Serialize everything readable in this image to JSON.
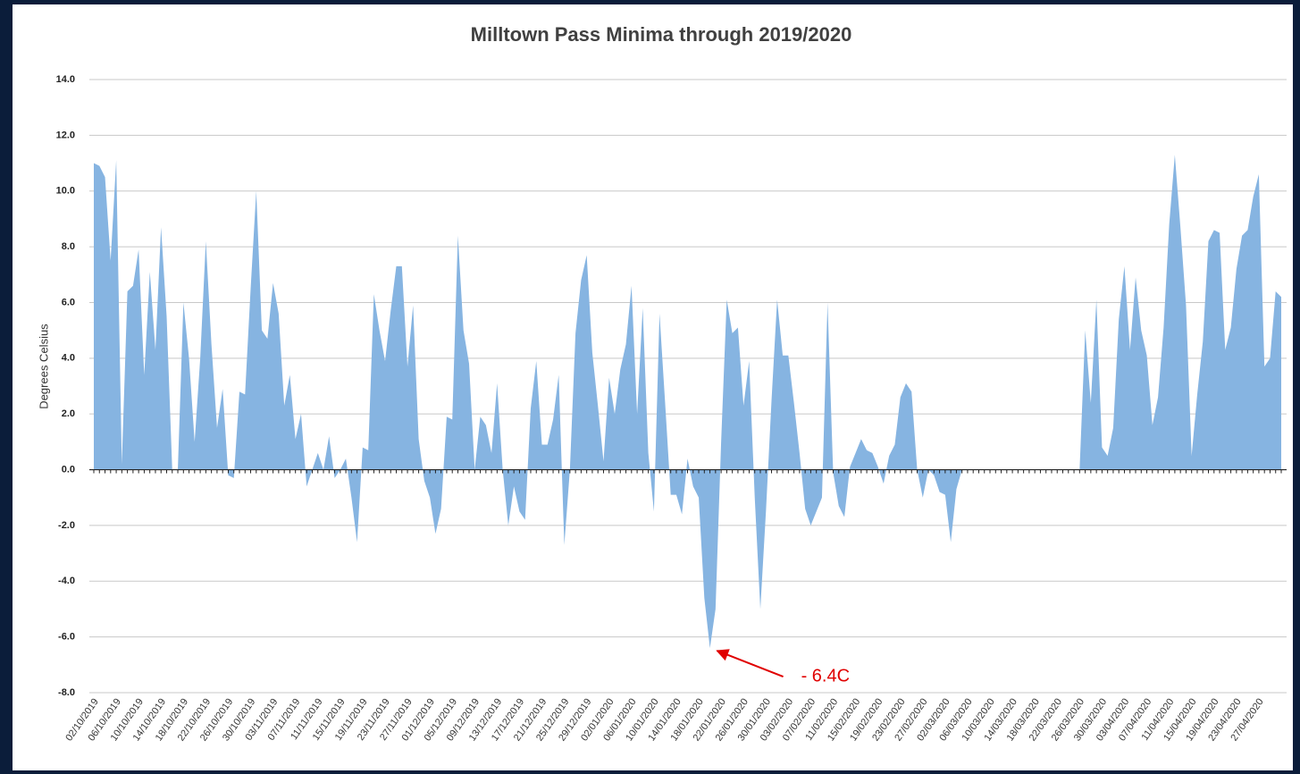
{
  "chart_data": {
    "type": "area",
    "title": "Milltown Pass Minima through 2019/2020",
    "ylabel": "Degrees Celsius",
    "categories": [
      "02/10/2019",
      null,
      null,
      null,
      "06/10/2019",
      null,
      null,
      null,
      "10/10/2019",
      null,
      null,
      null,
      "14/10/2019",
      null,
      null,
      null,
      "18/10/2019",
      null,
      null,
      null,
      "22/10/2019",
      null,
      null,
      null,
      "26/10/2019",
      null,
      null,
      null,
      "30/10/2019",
      null,
      null,
      null,
      "03/11/2019",
      null,
      null,
      null,
      "07/11/2019",
      null,
      null,
      null,
      "11/11/2019",
      null,
      null,
      null,
      "15/11/2019",
      null,
      null,
      null,
      "19/11/2019",
      null,
      null,
      null,
      "23/11/2019",
      null,
      null,
      null,
      "27/11/2019",
      null,
      null,
      null,
      "01/12/2019",
      null,
      null,
      null,
      "05/12/2019",
      null,
      null,
      null,
      "09/12/2019",
      null,
      null,
      null,
      "13/12/2019",
      null,
      null,
      null,
      "17/12/2019",
      null,
      null,
      null,
      "21/12/2019",
      null,
      null,
      null,
      "25/12/2019",
      null,
      null,
      null,
      "29/12/2019",
      null,
      null,
      null,
      "02/01/2020",
      null,
      null,
      null,
      "06/01/2020",
      null,
      null,
      null,
      "10/01/2020",
      null,
      null,
      null,
      "14/01/2020",
      null,
      null,
      null,
      "18/01/2020",
      null,
      null,
      null,
      "22/01/2020",
      null,
      null,
      null,
      "26/01/2020",
      null,
      null,
      null,
      "30/01/2020",
      null,
      null,
      null,
      "03/02/2020",
      null,
      null,
      null,
      "07/02/2020",
      null,
      null,
      null,
      "11/02/2020",
      null,
      null,
      null,
      "15/02/2020",
      null,
      null,
      null,
      "19/02/2020",
      null,
      null,
      null,
      "23/02/2020",
      null,
      null,
      null,
      "27/02/2020",
      null,
      null,
      null,
      "02/03/2020",
      null,
      null,
      null,
      "06/03/2020",
      null,
      null,
      null,
      "10/03/2020",
      null,
      null,
      null,
      "14/03/2020",
      null,
      null,
      null,
      "18/03/2020",
      null,
      null,
      null,
      "22/03/2020",
      null,
      null,
      null,
      "26/03/2020",
      null,
      null,
      null,
      "30/03/2020",
      null,
      null,
      null,
      "03/04/2020",
      null,
      null,
      null,
      "07/04/2020",
      null,
      null,
      null,
      "11/04/2020",
      null,
      null,
      null,
      "15/04/2020",
      null,
      null,
      null,
      "19/04/2020",
      null,
      null,
      null,
      "23/04/2020",
      null,
      null,
      null,
      "27/04/2020",
      null,
      null,
      null,
      null
    ],
    "values": [
      11.0,
      10.9,
      10.5,
      7.5,
      11.1,
      0.2,
      6.4,
      6.6,
      7.9,
      3.4,
      7.1,
      4.3,
      8.7,
      5.5,
      0.0,
      0.0,
      6.0,
      4.0,
      1.0,
      4.0,
      8.2,
      4.5,
      1.5,
      2.9,
      -0.2,
      -0.3,
      2.8,
      2.7,
      6.5,
      10.0,
      5.0,
      4.7,
      6.7,
      5.6,
      2.3,
      3.4,
      1.1,
      2.0,
      -0.6,
      0.0,
      0.6,
      0.0,
      1.2,
      -0.3,
      0.0,
      0.4,
      -1.0,
      -2.6,
      0.8,
      0.7,
      6.3,
      5.0,
      3.9,
      5.7,
      7.3,
      7.3,
      3.7,
      5.9,
      1.1,
      -0.4,
      -1.0,
      -2.3,
      -1.4,
      1.9,
      1.8,
      8.4,
      5.0,
      3.8,
      0.0,
      1.9,
      1.6,
      0.6,
      3.1,
      0.0,
      -2.0,
      -0.6,
      -1.5,
      -1.8,
      2.2,
      3.9,
      0.9,
      0.9,
      1.8,
      3.4,
      -2.7,
      0.0,
      4.9,
      6.8,
      7.7,
      4.2,
      2.3,
      0.3,
      3.3,
      2.0,
      3.6,
      4.5,
      6.6,
      2.0,
      5.8,
      0.6,
      -1.5,
      5.6,
      2.4,
      -0.9,
      -0.9,
      -1.6,
      0.4,
      -0.6,
      -1.0,
      -4.6,
      -6.4,
      -5.0,
      1.0,
      6.1,
      4.9,
      5.1,
      2.3,
      3.9,
      -1.0,
      -5.0,
      -1.5,
      2.5,
      6.1,
      4.1,
      4.1,
      2.4,
      0.6,
      -1.4,
      -2.0,
      -1.5,
      -1.0,
      6.0,
      -0.1,
      -1.3,
      -1.7,
      0.1,
      0.6,
      1.1,
      0.7,
      0.6,
      0.1,
      -0.5,
      0.5,
      0.9,
      2.6,
      3.1,
      2.8,
      0.0,
      -1.0,
      0.0,
      -0.2,
      -0.8,
      -0.9,
      -2.6,
      -0.7,
      0.0,
      0.0,
      0.0,
      0.0,
      0.0,
      0.0,
      0.0,
      0.0,
      0.0,
      0.0,
      0.0,
      0.0,
      0.0,
      0.0,
      0.0,
      0.0,
      0.0,
      0.0,
      0.0,
      0.0,
      0.0,
      0.0,
      5.0,
      2.4,
      6.1,
      0.8,
      0.5,
      1.5,
      5.4,
      7.3,
      4.3,
      6.9,
      5.0,
      4.1,
      1.6,
      2.6,
      5.1,
      8.8,
      11.3,
      8.7,
      5.9,
      0.5,
      2.7,
      4.6,
      8.2,
      8.6,
      8.5,
      4.3,
      5.1,
      7.2,
      8.4,
      8.6,
      9.8,
      10.6,
      3.7,
      4.0,
      6.4,
      6.2
    ],
    "color": "#86b4e1",
    "ylim": [
      -8,
      14
    ],
    "yticks": [
      {
        "value": -8,
        "label": "-8.0"
      },
      {
        "value": -6,
        "label": "-6.0"
      },
      {
        "value": -4,
        "label": "-4.0"
      },
      {
        "value": -2,
        "label": "-2.0"
      },
      {
        "value": 0,
        "label": "0.0"
      },
      {
        "value": 2,
        "label": "2.0"
      },
      {
        "value": 4,
        "label": "4.0"
      },
      {
        "value": 6,
        "label": "6.0"
      },
      {
        "value": 8,
        "label": "8.0"
      },
      {
        "value": 10,
        "label": "10.0"
      },
      {
        "value": 12,
        "label": "12.0"
      },
      {
        "value": 14,
        "label": "14.0"
      }
    ],
    "grid": true,
    "annotation": {
      "text": "- 6.4C",
      "index": 110
    }
  }
}
